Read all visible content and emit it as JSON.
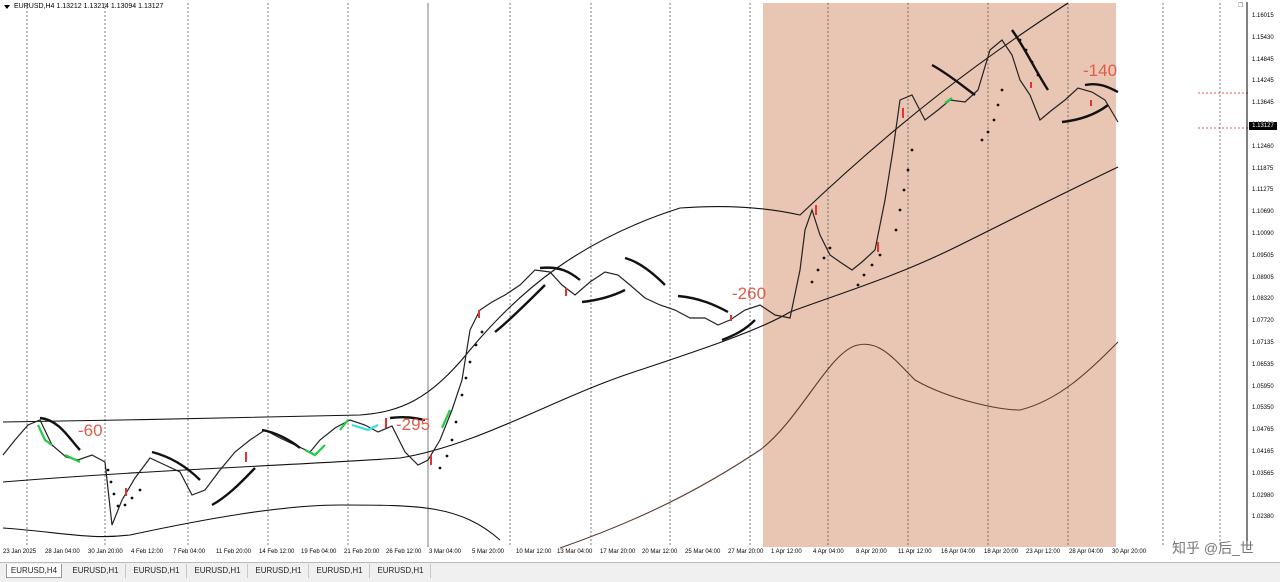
{
  "chart": {
    "title": "EURUSD,H4  1.13212 1.13214 1.13094 1.13127",
    "current_price": "1.13127",
    "price_axis": [
      "1.16015",
      "1.15430",
      "1.14845",
      "1.14245",
      "1.13645",
      "1.13060",
      "1.12460",
      "1.11875",
      "1.11275",
      "1.10690",
      "1.10090",
      "1.09505",
      "1.08905",
      "1.08320",
      "1.07720",
      "1.07135",
      "1.06535",
      "1.05950",
      "1.05350",
      "1.04765",
      "1.04165",
      "1.03565",
      "1.02980",
      "1.02380"
    ],
    "date_axis": [
      "23 Jan 2025",
      "28 Jan 04:00",
      "30 Jan 20:00",
      "4 Feb 12:00",
      "7 Feb 04:00",
      "11 Feb 20:00",
      "14 Feb 12:00",
      "19 Feb 04:00",
      "21 Feb 20:00",
      "26 Feb 12:00",
      "3 Mar 04:00",
      "5 Mar 20:00",
      "10 Mar 12:00",
      "13 Mar 04:00",
      "17 Mar 20:00",
      "20 Mar 12:00",
      "25 Mar 04:00",
      "27 Mar 20:00",
      "1 Apr 12:00",
      "4 Apr 04:00",
      "8 Apr 20:00",
      "11 Apr 12:00",
      "16 Apr 04:00",
      "18 Apr 20:00",
      "23 Apr 12:00",
      "28 Apr 04:00",
      "30 Apr 20:00"
    ],
    "annotations": [
      "-60",
      "-295",
      "-260",
      "-140"
    ],
    "colors": {
      "highlight": "#e9c6b3",
      "annotation": "#e05c4a",
      "up_segment": "#22cc44",
      "cyan_segment": "#33e0e0",
      "bull_candle": "#e23333"
    },
    "corner_icon": "window-restore-icon"
  },
  "tabs": [
    "EURUSD,H4",
    "EURUSD,H1",
    "EURUSD,H1",
    "EURUSD,H1",
    "EURUSD,H1",
    "EURUSD,H1",
    "EURUSD,H1"
  ],
  "watermark": "知乎 @后_世"
}
